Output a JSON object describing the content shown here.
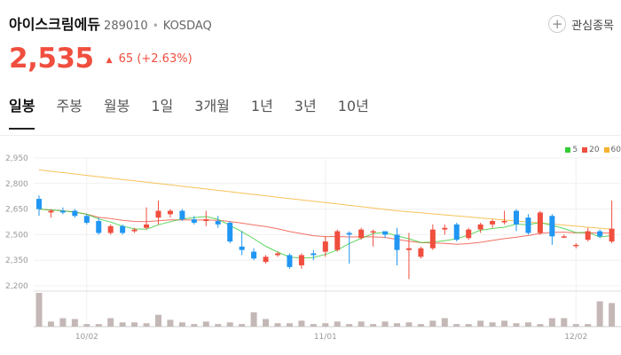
{
  "header": {
    "name": "아이스크림에듀",
    "code": "289010",
    "separator": "•",
    "market": "KOSDAQ"
  },
  "favorite": {
    "icon": "plus-icon",
    "label": "관심종목"
  },
  "quote": {
    "price": "2,535",
    "change_arrow": "▲",
    "change_value": "65",
    "change_pct": "(+2.63%)",
    "up_color": "#f04e3e"
  },
  "tabs": [
    "일봉",
    "주봉",
    "월봉",
    "1일",
    "3개월",
    "1년",
    "3년",
    "10년"
  ],
  "active_tab": 0,
  "legend": [
    {
      "label": "5",
      "color": "#33cc33"
    },
    {
      "label": "20",
      "color": "#f04e3e"
    },
    {
      "label": "60",
      "color": "#f5b330"
    }
  ],
  "chart_data": {
    "type": "candlestick",
    "y_ticks": [
      "2,950",
      "2,800",
      "2,650",
      "2,500",
      "2,350",
      "2,200"
    ],
    "ylim": [
      2200,
      2950
    ],
    "x_ticks": [
      {
        "index": 4,
        "label": "10/02"
      },
      {
        "index": 24,
        "label": "11/01"
      },
      {
        "index": 45,
        "label": "12/02"
      }
    ],
    "up_color": "#f04e3e",
    "down_color": "#2196f3",
    "candles": [
      [
        2710,
        2650,
        2730,
        2610
      ],
      [
        2630,
        2640,
        2650,
        2600
      ],
      [
        2640,
        2630,
        2660,
        2620
      ],
      [
        2640,
        2610,
        2650,
        2600
      ],
      [
        2610,
        2570,
        2620,
        2560
      ],
      [
        2580,
        2510,
        2600,
        2500
      ],
      [
        2510,
        2550,
        2560,
        2500
      ],
      [
        2550,
        2510,
        2560,
        2500
      ],
      [
        2520,
        2530,
        2540,
        2510
      ],
      [
        2540,
        2560,
        2660,
        2530
      ],
      [
        2600,
        2640,
        2700,
        2560
      ],
      [
        2620,
        2640,
        2650,
        2600
      ],
      [
        2640,
        2590,
        2650,
        2580
      ],
      [
        2590,
        2570,
        2610,
        2560
      ],
      [
        2580,
        2590,
        2640,
        2550
      ],
      [
        2580,
        2560,
        2610,
        2540
      ],
      [
        2570,
        2460,
        2580,
        2450
      ],
      [
        2430,
        2410,
        2520,
        2380
      ],
      [
        2400,
        2360,
        2420,
        2350
      ],
      [
        2340,
        2370,
        2380,
        2330
      ],
      [
        2380,
        2390,
        2400,
        2370
      ],
      [
        2380,
        2310,
        2390,
        2300
      ],
      [
        2320,
        2380,
        2390,
        2300
      ],
      [
        2390,
        2380,
        2410,
        2350
      ],
      [
        2400,
        2460,
        2490,
        2370
      ],
      [
        2410,
        2520,
        2530,
        2400
      ],
      [
        2510,
        2500,
        2520,
        2330
      ],
      [
        2480,
        2530,
        2540,
        2470
      ],
      [
        2520,
        2520,
        2530,
        2430
      ],
      [
        2520,
        2500,
        2510,
        2480
      ],
      [
        2500,
        2410,
        2540,
        2320
      ],
      [
        2410,
        2420,
        2510,
        2240
      ],
      [
        2370,
        2420,
        2430,
        2360
      ],
      [
        2420,
        2530,
        2560,
        2410
      ],
      [
        2530,
        2540,
        2560,
        2500
      ],
      [
        2560,
        2470,
        2570,
        2460
      ],
      [
        2480,
        2530,
        2540,
        2470
      ],
      [
        2530,
        2560,
        2570,
        2510
      ],
      [
        2560,
        2580,
        2590,
        2540
      ],
      [
        2580,
        2580,
        2640,
        2560
      ],
      [
        2640,
        2560,
        2650,
        2520
      ],
      [
        2600,
        2510,
        2620,
        2500
      ],
      [
        2510,
        2630,
        2640,
        2500
      ],
      [
        2610,
        2490,
        2620,
        2440
      ],
      [
        2490,
        2490,
        2500,
        2480
      ],
      [
        2440,
        2440,
        2450,
        2420
      ],
      [
        2470,
        2520,
        2540,
        2460
      ],
      [
        2520,
        2490,
        2530,
        2480
      ],
      [
        2460,
        2535,
        2700,
        2450
      ]
    ],
    "volume": [
      40,
      6,
      10,
      9,
      3,
      3,
      10,
      5,
      5,
      4,
      14,
      8,
      5,
      3,
      6,
      3,
      5,
      3,
      17,
      9,
      4,
      4,
      7,
      3,
      4,
      6,
      3,
      6,
      3,
      6,
      4,
      5,
      3,
      7,
      10,
      3,
      3,
      7,
      5,
      7,
      4,
      5,
      3,
      10,
      10,
      3,
      3,
      30,
      28
    ]
  }
}
